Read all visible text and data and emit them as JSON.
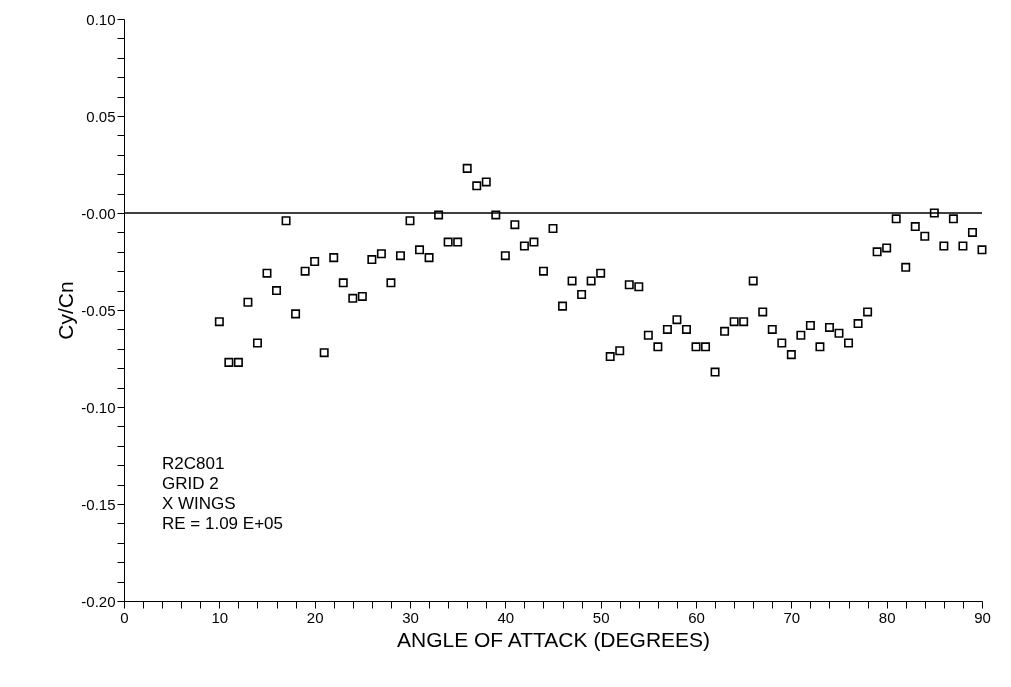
{
  "chart_data": {
    "type": "scatter",
    "xlabel": "ANGLE OF ATTACK (DEGREES)",
    "ylabel": "Cy/Cn",
    "x": [
      10,
      11,
      12,
      13,
      14,
      15,
      16,
      17,
      18,
      19,
      20,
      21,
      22,
      23,
      24,
      25,
      26,
      27,
      28,
      29,
      30,
      31,
      32,
      33,
      34,
      35,
      36,
      37,
      38,
      39,
      40,
      41,
      42,
      43,
      44,
      45,
      46,
      47,
      48,
      49,
      50,
      51,
      52,
      53,
      54,
      55,
      56,
      57,
      58,
      59,
      60,
      61,
      62,
      63,
      64,
      65,
      66,
      67,
      68,
      69,
      70,
      71,
      72,
      73,
      74,
      75,
      76,
      77,
      78,
      79,
      80,
      81,
      82,
      83,
      84,
      85,
      86,
      87,
      88,
      89,
      90
    ],
    "series": [
      {
        "color": "#000000",
        "values": [
          -0.056,
          -0.077,
          -0.077,
          -0.046,
          -0.067,
          -0.031,
          -0.04,
          -0.004,
          -0.052,
          -0.03,
          -0.025,
          -0.072,
          -0.023,
          -0.036,
          -0.044,
          -0.043,
          -0.024,
          -0.021,
          -0.036,
          -0.022,
          -0.004,
          -0.019,
          -0.023,
          -0.001,
          -0.015,
          -0.015,
          0.023,
          0.014,
          0.016,
          -0.001,
          -0.022,
          -0.006,
          -0.017,
          -0.015,
          -0.03,
          -0.008,
          -0.048,
          -0.035,
          -0.042,
          -0.035,
          -0.031,
          -0.074,
          -0.071,
          -0.037,
          -0.038,
          -0.063,
          -0.069,
          -0.06,
          -0.055,
          -0.06,
          -0.069,
          -0.069,
          -0.082,
          -0.061,
          -0.056,
          -0.056,
          -0.035,
          -0.051,
          -0.06,
          -0.067,
          -0.073,
          -0.063,
          -0.058,
          -0.069,
          -0.059,
          -0.062,
          -0.067,
          -0.057,
          -0.051,
          -0.02,
          -0.018,
          -0.003,
          -0.028,
          -0.007,
          -0.012,
          0.0,
          -0.017,
          -0.003,
          -0.017,
          -0.01,
          -0.019
        ]
      }
    ],
    "marker": "square",
    "xlim": [
      0,
      90
    ],
    "xticks": [
      0,
      {
        "value": 2,
        "label": null
      },
      {
        "value": 4,
        "label": null
      },
      {
        "value": 6,
        "label": null
      },
      {
        "value": 8,
        "label": null
      },
      10,
      {
        "value": 12,
        "label": null
      },
      {
        "value": 14,
        "label": null
      },
      {
        "value": 16,
        "label": null
      },
      {
        "value": 18,
        "label": null
      },
      20,
      {
        "value": 22,
        "label": null
      },
      {
        "value": 24,
        "label": null
      },
      {
        "value": 26,
        "label": null
      },
      {
        "value": 28,
        "label": null
      },
      30,
      {
        "value": 32,
        "label": null
      },
      {
        "value": 34,
        "label": null
      },
      {
        "value": 36,
        "label": null
      },
      {
        "value": 38,
        "label": null
      },
      40,
      {
        "value": 42,
        "label": null
      },
      {
        "value": 44,
        "label": null
      },
      {
        "value": 46,
        "label": null
      },
      {
        "value": 48,
        "label": null
      },
      50,
      {
        "value": 52,
        "label": null
      },
      {
        "value": 54,
        "label": null
      },
      {
        "value": 56,
        "label": null
      },
      {
        "value": 58,
        "label": null
      },
      60,
      {
        "value": 62,
        "label": null
      },
      {
        "value": 64,
        "label": null
      },
      {
        "value": 66,
        "label": null
      },
      {
        "value": 68,
        "label": null
      },
      70,
      {
        "value": 72,
        "label": null
      },
      {
        "value": 74,
        "label": null
      },
      {
        "value": 76,
        "label": null
      },
      {
        "value": 78,
        "label": null
      },
      80,
      {
        "value": 82,
        "label": null
      },
      {
        "value": 84,
        "label": null
      },
      {
        "value": 86,
        "label": null
      },
      {
        "value": 88,
        "label": null
      },
      90
    ],
    "ylim": [
      -0.2,
      0.1
    ],
    "yticks": [
      {
        "value": -0.2,
        "label": "-0.20"
      },
      {
        "value": -0.19,
        "label": null
      },
      {
        "value": -0.18,
        "label": null
      },
      {
        "value": -0.17,
        "label": null
      },
      {
        "value": -0.16,
        "label": null
      },
      {
        "value": -0.15,
        "label": "-0.15"
      },
      {
        "value": -0.14,
        "label": null
      },
      {
        "value": -0.13,
        "label": null
      },
      {
        "value": -0.12,
        "label": null
      },
      {
        "value": -0.11,
        "label": null
      },
      {
        "value": -0.1,
        "label": "-0.10"
      },
      {
        "value": -0.09,
        "label": null
      },
      {
        "value": -0.08,
        "label": null
      },
      {
        "value": -0.07,
        "label": null
      },
      {
        "value": -0.06,
        "label": null
      },
      {
        "value": -0.05,
        "label": "-0.05"
      },
      {
        "value": -0.04,
        "label": null
      },
      {
        "value": -0.03,
        "label": null
      },
      {
        "value": -0.02,
        "label": null
      },
      {
        "value": -0.01,
        "label": null
      },
      {
        "value": 0,
        "label": "-0.00"
      },
      {
        "value": 0.01,
        "label": null
      },
      {
        "value": 0.02,
        "label": null
      },
      {
        "value": 0.03,
        "label": null
      },
      {
        "value": 0.04,
        "label": null
      },
      {
        "value": 0.05,
        "label": "0.05"
      },
      {
        "value": 0.06,
        "label": null
      },
      {
        "value": 0.07,
        "label": null
      },
      {
        "value": 0.08,
        "label": null
      },
      {
        "value": 0.09,
        "label": null
      },
      {
        "value": 0.1,
        "label": "0.10"
      }
    ],
    "ref_lines": [
      {
        "axis": "y",
        "value": 0,
        "color": "#000000"
      }
    ],
    "annotations": [
      "R2C801",
      "GRID 2",
      "X WINGS",
      "RE  =  1.09  E+05"
    ],
    "grid": false,
    "legend": false
  }
}
